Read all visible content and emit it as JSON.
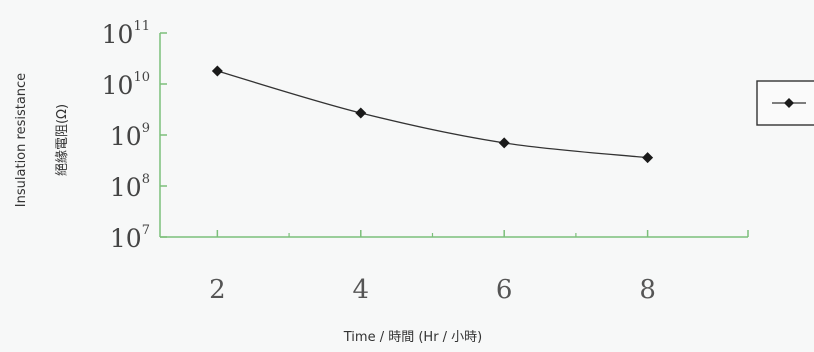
{
  "chart_data": {
    "type": "line",
    "xlabel": "Time / 時間 (Hr / 小時)",
    "ylabel": "Insulation resistance",
    "ylabel_secondary": "絕緣電阻(Ω)",
    "scale_y": "log",
    "ylim": [
      10000000,
      100000000000
    ],
    "xlim": [
      1.2,
      9.4
    ],
    "x_ticks": [
      2,
      4,
      6,
      8
    ],
    "y_ticks": [
      {
        "base": "10",
        "exp": "7",
        "value": 10000000
      },
      {
        "base": "10",
        "exp": "8",
        "value": 100000000
      },
      {
        "base": "10",
        "exp": "9",
        "value": 1000000000
      },
      {
        "base": "10",
        "exp": "10",
        "value": 10000000000
      },
      {
        "base": "10",
        "exp": "11",
        "value": 100000000000
      }
    ],
    "series": [
      {
        "marker": "diamond",
        "x": [
          2,
          4,
          6,
          8
        ],
        "values": [
          18000000000,
          2700000000,
          700000000,
          360000000
        ]
      }
    ],
    "legend_position": "right",
    "grid": false,
    "colors": {
      "axis": "#7cbf7a",
      "line": "#333333",
      "marker": "#1a1a1a",
      "legend_border": "#333333"
    }
  }
}
